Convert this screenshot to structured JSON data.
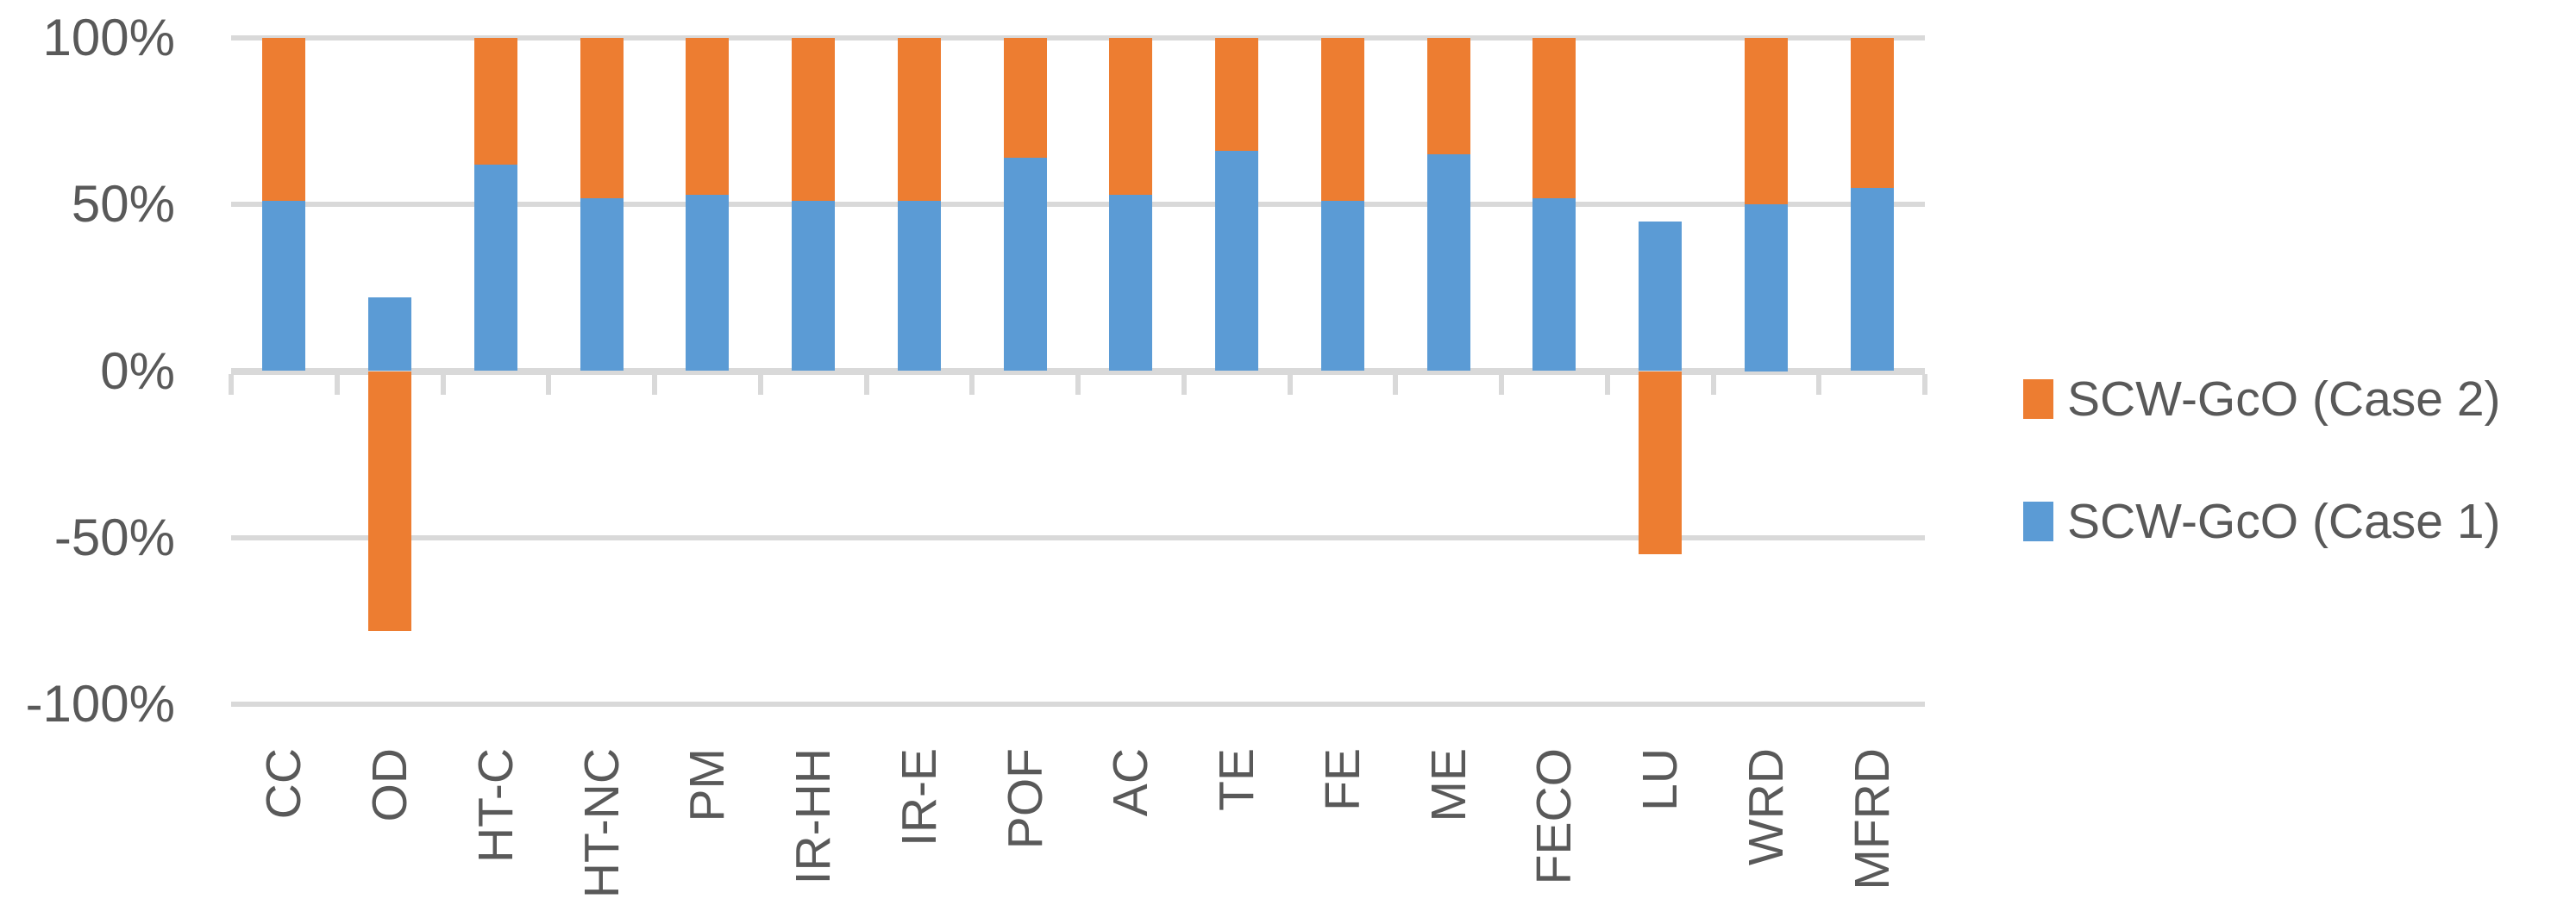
{
  "chart_data": {
    "type": "bar",
    "stacked": true,
    "percent_stacked": true,
    "title": "",
    "categories": [
      "CC",
      "OD",
      "HT-C",
      "HT-NC",
      "PM",
      "IR-HH",
      "IR-E",
      "POF",
      "AC",
      "TE",
      "FE",
      "ME",
      "FECO",
      "LU",
      "WRD",
      "MFRD"
    ],
    "series": [
      {
        "name": "SCW-GcO (Case 1)",
        "color": "#5B9BD5",
        "values": [
          51,
          22,
          62,
          52,
          53,
          51,
          51,
          64,
          53,
          66,
          51,
          65,
          52,
          45,
          50,
          55
        ]
      },
      {
        "name": "SCW-GcO (Case 2)",
        "color": "#ED7D31",
        "values": [
          49,
          -78,
          38,
          48,
          47,
          49,
          49,
          36,
          47,
          34,
          49,
          35,
          48,
          -55,
          50,
          45
        ]
      }
    ],
    "ylim": [
      -100,
      100
    ],
    "ytick_labels": [
      "100%",
      "50%",
      "0%",
      "-50%",
      "-100%"
    ],
    "ytick_values": [
      100,
      50,
      0,
      -50,
      -100
    ],
    "grid": true,
    "legend_position": "right",
    "legend_items": [
      {
        "label": "SCW-GcO (Case 2)",
        "color": "#ED7D31"
      },
      {
        "label": "SCW-GcO (Case 1)",
        "color": "#5B9BD5"
      }
    ]
  },
  "colors": {
    "background": "#FFFFFF",
    "gridline": "#D9D9D9",
    "axis_line": "#D9D9D9",
    "axis_text": "#595959"
  }
}
